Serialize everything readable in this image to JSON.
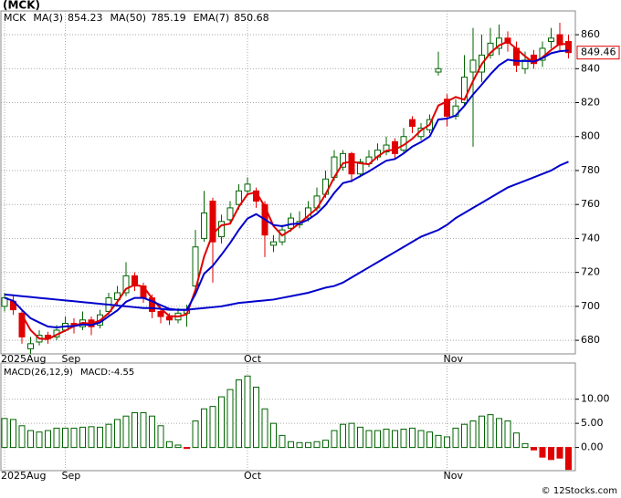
{
  "chart_data": [
    {
      "type": "candlestick",
      "title": "(MCK)",
      "ticker": "MCK",
      "categories": [
        "2025Aug",
        null,
        null,
        null,
        null,
        null,
        null,
        "Sep",
        null,
        null,
        null,
        null,
        null,
        null,
        null,
        null,
        null,
        null,
        null,
        null,
        null,
        null,
        null,
        null,
        null,
        null,
        null,
        null,
        "Oct",
        null,
        null,
        null,
        null,
        null,
        null,
        null,
        null,
        null,
        null,
        null,
        null,
        null,
        null,
        null,
        null,
        null,
        null,
        null,
        null,
        null,
        null,
        "Nov",
        null,
        null,
        null,
        null,
        null,
        null,
        null,
        null,
        null,
        null,
        null,
        null,
        null,
        null
      ],
      "open": [
        700,
        703,
        696,
        675,
        679,
        683,
        682,
        686,
        690,
        688,
        692,
        689,
        697,
        704,
        708,
        718,
        712,
        705,
        697,
        694,
        692,
        696,
        712,
        740,
        762,
        741,
        751,
        760,
        768,
        768,
        760,
        736,
        738,
        746,
        748,
        752,
        758,
        766,
        776,
        782,
        790,
        778,
        784,
        788,
        791,
        797,
        792,
        810,
        800,
        804,
        838,
        822,
        812,
        820,
        838,
        838,
        848,
        852,
        858,
        852,
        840,
        848,
        845,
        856,
        860,
        856
      ],
      "high": [
        708,
        706,
        698,
        682,
        686,
        685,
        689,
        694,
        693,
        697,
        694,
        698,
        708,
        712,
        726,
        720,
        714,
        707,
        699,
        696,
        699,
        701,
        745,
        768,
        764,
        754,
        762,
        772,
        776,
        770,
        762,
        742,
        748,
        755,
        756,
        762,
        770,
        780,
        792,
        792,
        791,
        787,
        792,
        796,
        800,
        799,
        805,
        812,
        808,
        813,
        850,
        825,
        822,
        848,
        864,
        860,
        864,
        866,
        862,
        856,
        850,
        851,
        856,
        864,
        867,
        860
      ],
      "low": [
        697,
        695,
        678,
        672,
        677,
        678,
        680,
        685,
        684,
        686,
        683,
        687,
        695,
        701,
        706,
        709,
        702,
        693,
        690,
        689,
        690,
        688,
        710,
        738,
        714,
        737,
        749,
        757,
        765,
        758,
        729,
        732,
        736,
        744,
        746,
        750,
        756,
        764,
        774,
        780,
        773,
        776,
        782,
        786,
        789,
        787,
        790,
        802,
        798,
        802,
        836,
        806,
        810,
        818,
        794,
        832,
        846,
        848,
        850,
        838,
        837,
        840,
        841,
        852,
        850,
        846
      ],
      "close": [
        705,
        698,
        682,
        678,
        683,
        681,
        686,
        690,
        689,
        692,
        688,
        695,
        705,
        708,
        718,
        712,
        705,
        697,
        694,
        692,
        696,
        698,
        735,
        755,
        738,
        750,
        758,
        768,
        772,
        762,
        742,
        738,
        745,
        752,
        750,
        758,
        765,
        775,
        788,
        790,
        778,
        785,
        788,
        792,
        795,
        790,
        800,
        806,
        805,
        810,
        840,
        812,
        818,
        835,
        845,
        848,
        855,
        858,
        855,
        842,
        845,
        843,
        852,
        858,
        854,
        849.46
      ],
      "up_color": "#006400",
      "down_color": "#e00000",
      "series": [
        {
          "name": "MA(3)",
          "color": "#e00000",
          "values": [
            null,
            null,
            695,
            686,
            681,
            680.7,
            683.3,
            685.7,
            688.3,
            690.3,
            689.7,
            691.7,
            696,
            702.7,
            710.3,
            712.7,
            711.7,
            704.7,
            698.7,
            694.3,
            694,
            695.3,
            709.7,
            729.3,
            742.7,
            747.7,
            748.7,
            758.7,
            766,
            767.3,
            758.7,
            747.3,
            741.7,
            745,
            749,
            753.3,
            757.7,
            766,
            776,
            784.3,
            785.3,
            784.3,
            783.7,
            788.3,
            791.7,
            792.3,
            795,
            798.7,
            803.7,
            807,
            818.3,
            820.7,
            823.3,
            821.7,
            832.7,
            842.7,
            849.3,
            853.7,
            856,
            851.7,
            847.3,
            843.3,
            846.7,
            851,
            854.7,
            854.23
          ]
        },
        {
          "name": "MA(50)",
          "color": "#0000cc",
          "values": [
            707,
            706.5,
            706,
            705.5,
            705,
            704.5,
            704,
            703.5,
            703,
            702.5,
            702,
            701.5,
            701,
            700.5,
            700,
            699.5,
            699,
            699,
            698.5,
            698,
            698,
            698,
            698.5,
            699,
            699.5,
            700,
            701,
            702,
            702.5,
            703,
            703.5,
            704,
            705,
            706,
            707,
            708,
            709.5,
            711,
            712,
            714,
            717,
            720,
            723,
            726,
            729,
            732,
            735,
            738,
            741,
            743,
            745,
            748,
            752,
            755,
            758,
            761,
            764,
            767,
            770,
            772,
            774,
            776,
            778,
            780,
            783,
            785.19
          ]
        },
        {
          "name": "EMA(7)",
          "color": "#0000cc",
          "values": [
            705,
            703.25,
            697.9,
            693,
            690.5,
            688.1,
            687.6,
            688.2,
            688.4,
            689.3,
            689,
            690.5,
            694.1,
            697.6,
            702.7,
            705,
            705,
            703,
            700.7,
            698.5,
            697.9,
            697.9,
            707.2,
            719.2,
            723.9,
            730.4,
            737.3,
            745,
            751.7,
            754.3,
            751.2,
            747.9,
            747.2,
            748.4,
            748.8,
            751.1,
            754.6,
            759.7,
            766.8,
            772.6,
            773.9,
            776.7,
            779.5,
            782.7,
            785.8,
            786.8,
            790.1,
            794.1,
            796.8,
            800.1,
            810.1,
            810.6,
            812.4,
            818.1,
            824.8,
            830.6,
            836.7,
            842,
            845.3,
            844.5,
            844.6,
            844.2,
            846.2,
            849.1,
            850.3,
            850.68
          ]
        }
      ],
      "ylim": [
        672,
        874
      ],
      "yticks": [
        680,
        700,
        720,
        740,
        760,
        780,
        800,
        820,
        840,
        860
      ],
      "grid": true
    },
    {
      "type": "bar",
      "title": "MACD(26,12,9)",
      "value_name": "MACD:",
      "categories": [
        "2025Aug",
        null,
        null,
        null,
        null,
        null,
        null,
        "Sep",
        null,
        null,
        null,
        null,
        null,
        null,
        null,
        null,
        null,
        null,
        null,
        null,
        null,
        null,
        null,
        null,
        null,
        null,
        null,
        null,
        "Oct",
        null,
        null,
        null,
        null,
        null,
        null,
        null,
        null,
        null,
        null,
        null,
        null,
        null,
        null,
        null,
        null,
        null,
        null,
        null,
        null,
        null,
        null,
        "Nov",
        null,
        null,
        null,
        null,
        null,
        null,
        null,
        null,
        null,
        null,
        null,
        null,
        null,
        null
      ],
      "values": [
        6,
        5.8,
        4.5,
        3.5,
        3.2,
        3.5,
        4,
        4,
        4,
        4.2,
        4.3,
        4.2,
        4.8,
        5.8,
        6.5,
        7.2,
        7.2,
        6.5,
        4.5,
        1.2,
        0.5,
        -0.2,
        5.5,
        8,
        8.5,
        10.5,
        12,
        14,
        14.8,
        12.5,
        8,
        5,
        2.5,
        1.2,
        1,
        1,
        1.2,
        1.5,
        3.5,
        4.8,
        5,
        4.2,
        3.5,
        3.5,
        3.8,
        3.5,
        3.8,
        4,
        3.5,
        3.2,
        2.5,
        2.2,
        4,
        4.8,
        5.5,
        6.5,
        6.8,
        6,
        5.5,
        3,
        0.8,
        -0.5,
        -2,
        -2.5,
        -2.2,
        -4.55
      ],
      "up_color": "#006400",
      "down_color": "#e00000",
      "ylim": [
        -4.8,
        17.5
      ],
      "yticks": [
        {
          "value": 0,
          "label": "0.00"
        },
        {
          "value": 5,
          "label": "5.00"
        },
        {
          "value": 10,
          "label": "10.00"
        }
      ],
      "grid": true
    }
  ],
  "footer": "© 12Stocks.com"
}
